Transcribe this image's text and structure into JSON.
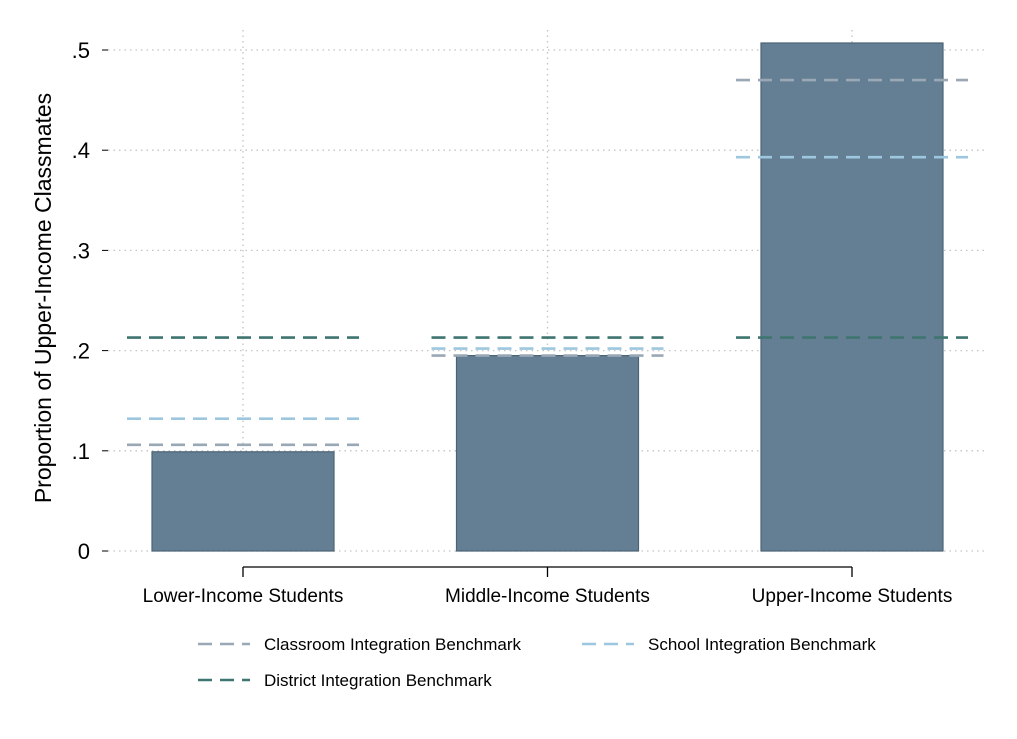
{
  "chart_data": {
    "type": "bar",
    "title": "",
    "xlabel": "",
    "ylabel": "Proportion of Upper-Income Classmates",
    "ylim": [
      0,
      0.5
    ],
    "yticks": [
      {
        "value": 0,
        "label": "0"
      },
      {
        "value": 0.1,
        "label": ".1"
      },
      {
        "value": 0.2,
        "label": ".2"
      },
      {
        "value": 0.3,
        "label": ".3"
      },
      {
        "value": 0.4,
        "label": ".4"
      },
      {
        "value": 0.5,
        "label": ".5"
      }
    ],
    "categories": [
      "Lower-Income Students",
      "Middle-Income Students",
      "Upper-Income Students"
    ],
    "values": [
      0.099,
      0.195,
      0.507
    ],
    "bar_color": "#647f93",
    "grid": true,
    "legend_position": "bottom",
    "benchmarks": [
      {
        "name": "Classroom Integration Benchmark",
        "color": "#9aa8b6",
        "values": [
          0.106,
          0.195,
          0.47
        ]
      },
      {
        "name": "School Integration Benchmark",
        "color": "#9dc7df",
        "values": [
          0.132,
          0.202,
          0.393
        ]
      },
      {
        "name": "District Integration Benchmark",
        "color": "#3f7570",
        "values": [
          0.213,
          0.213,
          0.213
        ]
      }
    ]
  }
}
